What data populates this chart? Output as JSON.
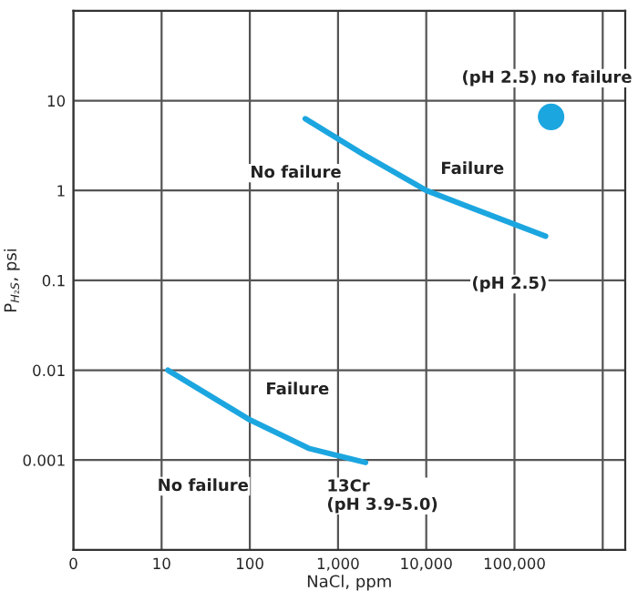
{
  "chart_data": {
    "type": "line",
    "xlabel": "NaCl, ppm",
    "ylabel": "P$_{H₂S}$, psi",
    "log": "xy",
    "grid": true,
    "marker": "none",
    "line_style": "solid",
    "xlim": [
      0,
      1800000
    ],
    "ylim": [
      0.0001,
      100
    ],
    "xticks": [
      0,
      10,
      100,
      {
        "value": 1000,
        "label": "1,000"
      },
      {
        "value": 10000,
        "label": "10,000"
      },
      {
        "value": 100000,
        "label": "100,000"
      },
      {
        "value": 1000000,
        "label": null
      }
    ],
    "yticks": [
      0.001,
      0.01,
      0.1,
      1,
      10
    ],
    "series": [
      {
        "color": "#1ca6e0",
        "x": [
          425,
          1960,
          10000,
          49000,
          225000
        ],
        "values": [
          6.3,
          2.5,
          1.0,
          0.55,
          0.31
        ]
      },
      {
        "color": "#1ca6e0",
        "x": [
          11.8,
          100,
          464,
          2050
        ],
        "values": [
          0.01,
          0.0028,
          0.00135,
          0.00094
        ]
      },
      {
        "type": "scatter",
        "marker": "circle",
        "color": "#1ca6e0",
        "x": [
          260000
        ],
        "values": [
          6.6
        ]
      }
    ],
    "annotations": [
      "No failure",
      "Failure",
      "(pH 2.5) no failure",
      "(pH 2.5)",
      "Failure",
      "No failure",
      "13Cr\n(pH 3.9-5.0)"
    ]
  }
}
